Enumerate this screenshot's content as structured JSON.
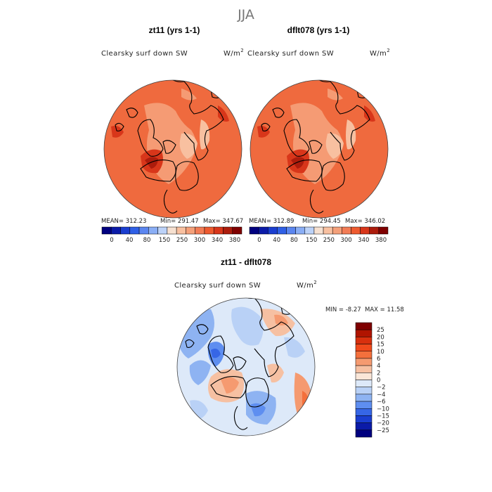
{
  "page_title": "JJA",
  "chart_data": [
    {
      "type": "heatmap",
      "panel": "left",
      "title": "zt11 (yrs 1-1)",
      "variable": "Clearsky surf down SW",
      "units": "W/m",
      "units_exp": "2",
      "stats": {
        "mean": "MEAN= 312.23",
        "min": "Min= 291.47",
        "max": "Max= 347.67"
      },
      "colorbar_ticks": [
        "0",
        "40",
        "80",
        "150",
        "250",
        "300",
        "340",
        "380"
      ],
      "colors": [
        "#00007f",
        "#0b1ba8",
        "#1a3ed0",
        "#2f5fe6",
        "#5b86f0",
        "#8aaef5",
        "#bcd2f8",
        "#f6e0d0",
        "#f8c0a0",
        "#f4a07a",
        "#f27c55",
        "#ee5a2f",
        "#d8361a",
        "#ac1c0c",
        "#7f0000"
      ]
    },
    {
      "type": "heatmap",
      "panel": "right",
      "title": "dflt078 (yrs 1-1)",
      "variable": "Clearsky surf down SW",
      "units": "W/m",
      "units_exp": "2",
      "stats": {
        "mean": "MEAN= 312.89",
        "min": "Min= 294.45",
        "max": "Max= 346.02"
      },
      "colorbar_ticks": [
        "0",
        "40",
        "80",
        "150",
        "250",
        "300",
        "340",
        "380"
      ],
      "colors": [
        "#00007f",
        "#0b1ba8",
        "#1a3ed0",
        "#2f5fe6",
        "#5b86f0",
        "#8aaef5",
        "#bcd2f8",
        "#f6e0d0",
        "#f8c0a0",
        "#f4a07a",
        "#f27c55",
        "#ee5a2f",
        "#d8361a",
        "#ac1c0c",
        "#7f0000"
      ]
    },
    {
      "type": "heatmap",
      "panel": "difference",
      "title": "zt11 - dflt078",
      "variable": "Clearsky surf down SW",
      "units": "W/m",
      "units_exp": "2",
      "stats": {
        "min": "MIN =   -8.27",
        "max": "MAX =   11.58"
      },
      "colorbar_ticks": [
        "25",
        "20",
        "15",
        "10",
        "6",
        "4",
        "2",
        "0",
        "−2",
        "−4",
        "−6",
        "−10",
        "−15",
        "−20",
        "−25"
      ],
      "colors": [
        "#7f0000",
        "#b01400",
        "#d8300e",
        "#f04a1c",
        "#f4703c",
        "#f59a70",
        "#f6c0a2",
        "#fae6d8",
        "#dde9f9",
        "#b9d1f6",
        "#8eb3f2",
        "#5e8ef0",
        "#3666e6",
        "#1a3ed0",
        "#0b1ba8",
        "#00007f"
      ]
    }
  ]
}
